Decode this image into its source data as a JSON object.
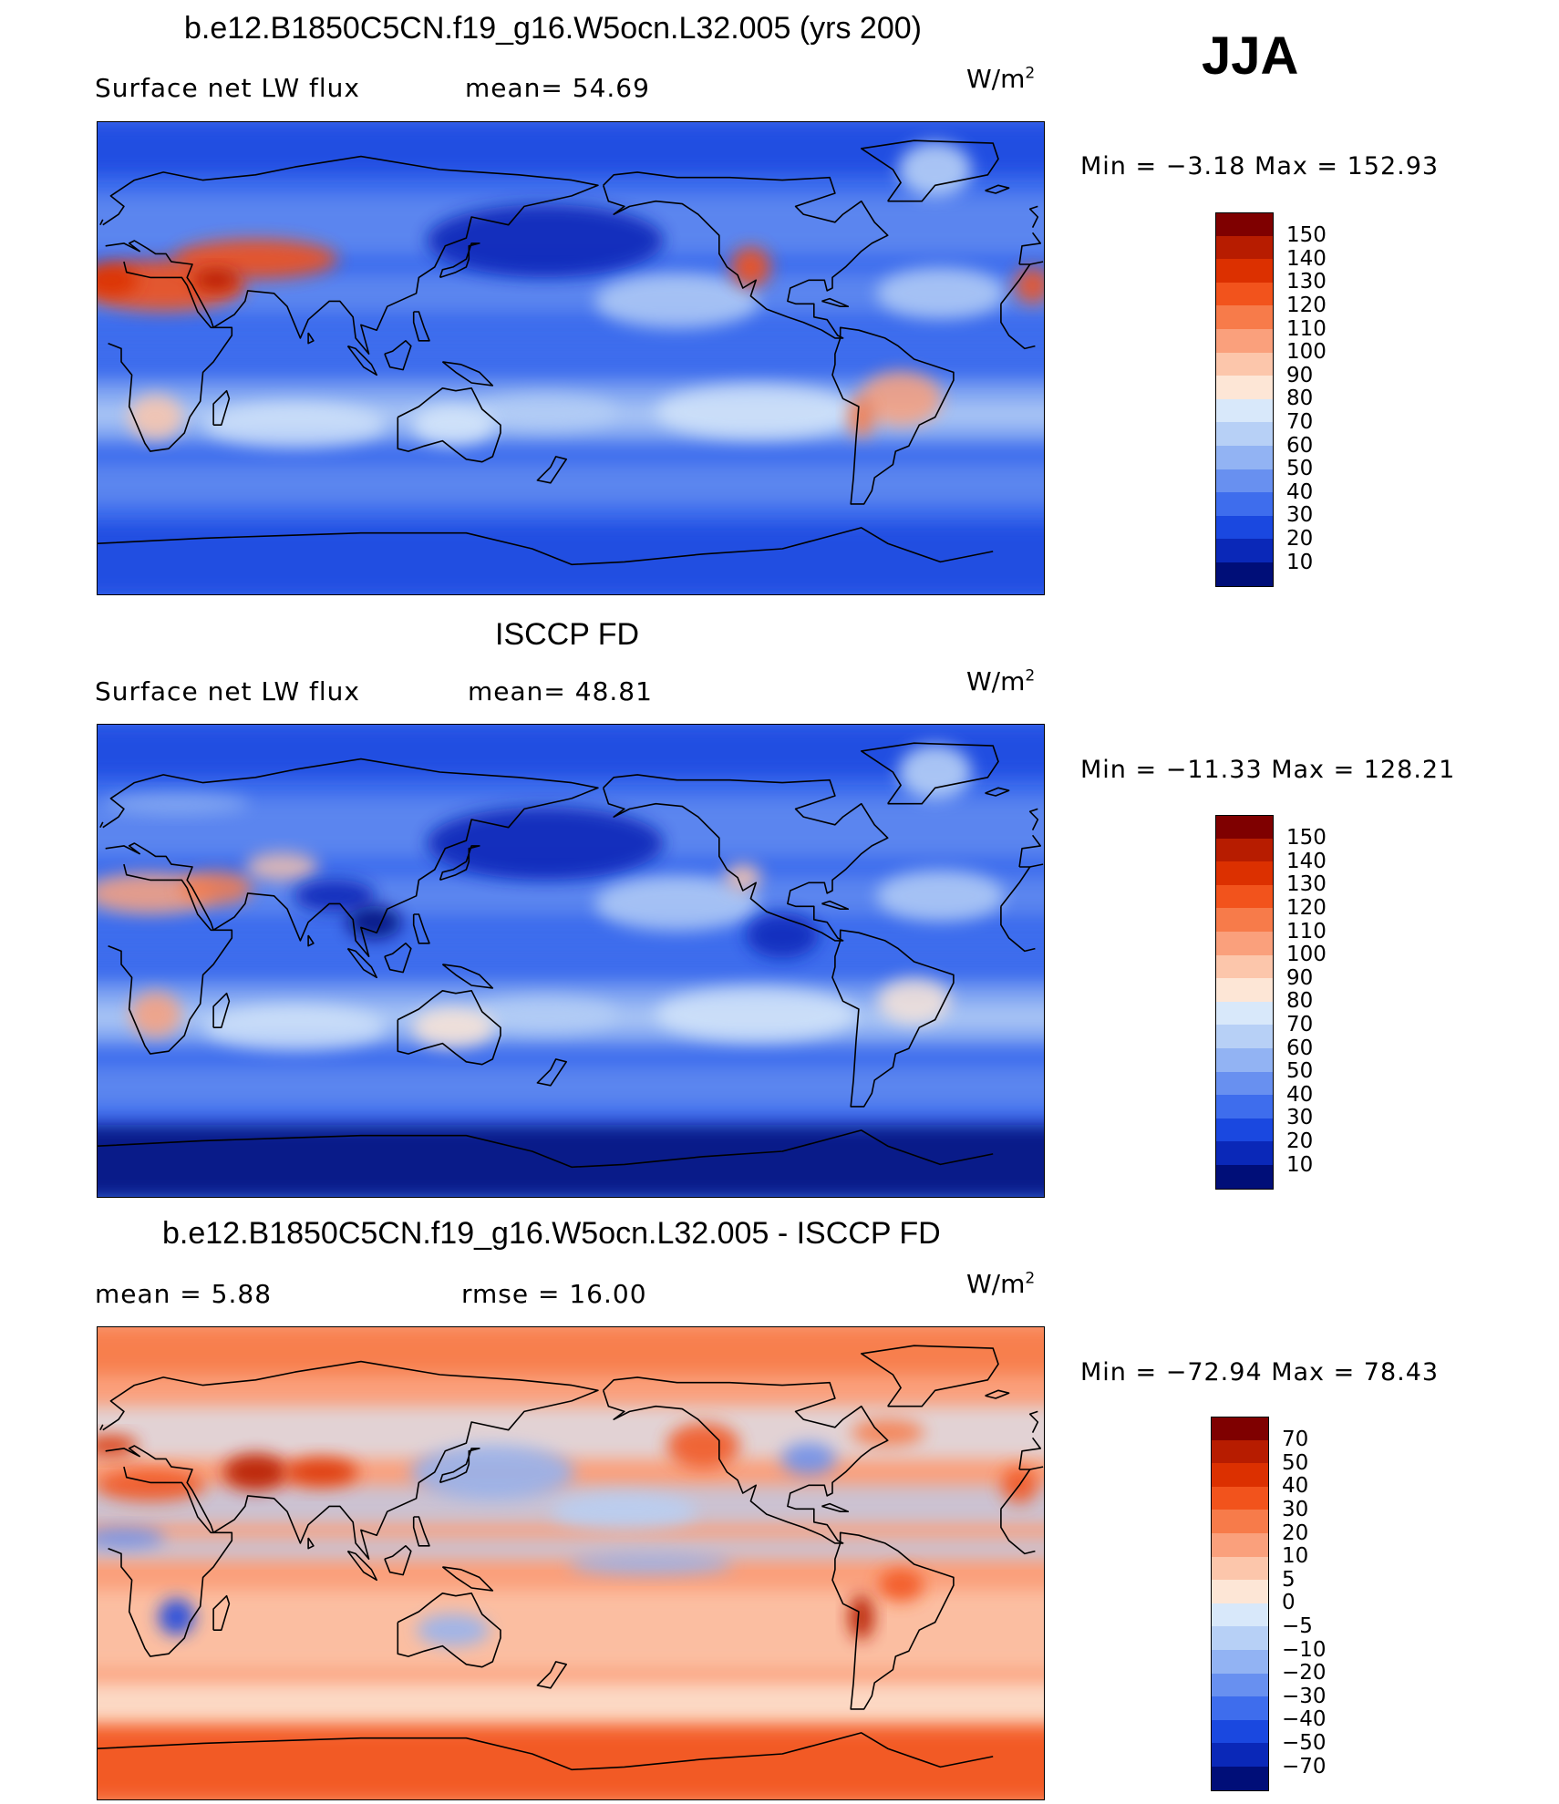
{
  "season": "JJA",
  "panels": [
    {
      "title": "b.e12.B1850C5CN.f19_g16.W5ocn.L32.005 (yrs 200)",
      "stat1": "Surface net LW flux",
      "stat2": "mean=  54.69",
      "units": "W/m",
      "units_sup": "2",
      "minmax": "Min =   −3.18 Max = 152.93",
      "levels": [
        "150",
        "140",
        "130",
        "120",
        "110",
        "100",
        "90",
        "80",
        "70",
        "60",
        "50",
        "40",
        "30",
        "20",
        "10"
      ],
      "colors": [
        "#7f0000",
        "#b71c00",
        "#dc3000",
        "#f2531c",
        "#f77b4a",
        "#faa07c",
        "#fcc6ab",
        "#fde6d6",
        "#d8e8fa",
        "#b7d0f6",
        "#92b3f3",
        "#6890f0",
        "#3e6ded",
        "#1a48e0",
        "#0a28b8",
        "#000e78"
      ],
      "map_style": "abs"
    },
    {
      "title": "ISCCP FD",
      "stat1": "Surface net LW flux",
      "stat2": "mean=  48.81",
      "units": "W/m",
      "units_sup": "2",
      "minmax": "Min = −11.33 Max = 128.21",
      "levels": [
        "150",
        "140",
        "130",
        "120",
        "110",
        "100",
        "90",
        "80",
        "70",
        "60",
        "50",
        "40",
        "30",
        "20",
        "10"
      ],
      "colors": [
        "#7f0000",
        "#b71c00",
        "#dc3000",
        "#f2531c",
        "#f77b4a",
        "#faa07c",
        "#fcc6ab",
        "#fde6d6",
        "#d8e8fa",
        "#b7d0f6",
        "#92b3f3",
        "#6890f0",
        "#3e6ded",
        "#1a48e0",
        "#0a28b8",
        "#000e78"
      ],
      "map_style": "obs"
    },
    {
      "title": "b.e12.B1850C5CN.f19_g16.W5ocn.L32.005 - ISCCP FD",
      "stat1": "mean =    5.88",
      "stat2": "rmse =   16.00",
      "units": "W/m",
      "units_sup": "2",
      "minmax": "Min = −72.94 Max =  78.43",
      "levels": [
        "70",
        "50",
        "40",
        "30",
        "20",
        "10",
        "5",
        "0",
        "−5",
        "−10",
        "−20",
        "−30",
        "−40",
        "−50",
        "−70"
      ],
      "colors": [
        "#7f0000",
        "#b71c00",
        "#dc3000",
        "#f2531c",
        "#f77b4a",
        "#faa07c",
        "#fcc6ab",
        "#fde6d6",
        "#d8e8fa",
        "#b7d0f6",
        "#92b3f3",
        "#6890f0",
        "#3e6ded",
        "#1a48e0",
        "#0a28b8",
        "#000e78"
      ],
      "map_style": "diff"
    }
  ]
}
